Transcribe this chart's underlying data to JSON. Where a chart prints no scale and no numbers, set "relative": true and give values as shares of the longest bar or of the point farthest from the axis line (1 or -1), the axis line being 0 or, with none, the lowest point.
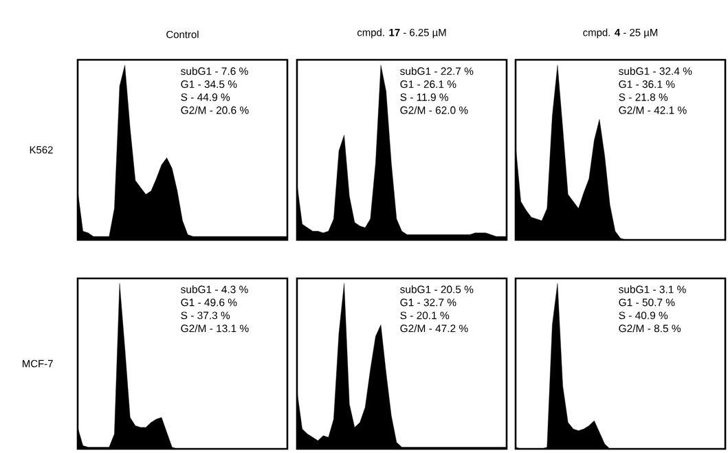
{
  "chart_data": [
    {
      "type": "area",
      "title": "Control",
      "ylabel": "K562",
      "relative": true,
      "color": "#000000",
      "categories": [
        null,
        null,
        null,
        null,
        null,
        null,
        null,
        null,
        null,
        null,
        null,
        null,
        null,
        null,
        null,
        null,
        null,
        null,
        null,
        null,
        null,
        null,
        null,
        null,
        null,
        null,
        null,
        null,
        null,
        null,
        null,
        null,
        null,
        null,
        null,
        null,
        null,
        null,
        null,
        null,
        null
      ],
      "values": [
        0.28,
        0.05,
        0.04,
        0.02,
        0.02,
        0.02,
        0.02,
        0.18,
        0.88,
        1.0,
        0.64,
        0.34,
        0.3,
        0.26,
        0.28,
        0.35,
        0.43,
        0.47,
        0.41,
        0.28,
        0.11,
        0.03,
        0.02,
        0.02,
        0.02,
        0.02,
        0.02,
        0.02,
        0.02,
        0.02,
        0.02,
        0.02,
        0.02,
        0.02,
        0.02,
        0.02,
        0.02,
        0.02,
        0.02,
        0.02,
        0.02
      ],
      "annotations": [
        "subG1 - 7.6 %",
        "G1 - 34.5 %",
        "S - 44.9 %",
        "G2/M - 20.6 %"
      ]
    },
    {
      "type": "area",
      "title": "cmpd. **17** - 6.25 µM",
      "relative": true,
      "color": "#000000",
      "categories": [
        null,
        null,
        null,
        null,
        null,
        null,
        null,
        null,
        null,
        null,
        null,
        null,
        null,
        null,
        null,
        null,
        null,
        null,
        null,
        null,
        null,
        null,
        null,
        null,
        null,
        null,
        null,
        null,
        null,
        null,
        null,
        null,
        null,
        null,
        null,
        null,
        null,
        null,
        null,
        null,
        null
      ],
      "values": [
        0.32,
        0.09,
        0.07,
        0.05,
        0.05,
        0.04,
        0.05,
        0.12,
        0.51,
        0.6,
        0.25,
        0.1,
        0.08,
        0.07,
        0.12,
        0.44,
        1.0,
        0.85,
        0.44,
        0.12,
        0.05,
        0.03,
        0.03,
        0.03,
        0.03,
        0.03,
        0.03,
        0.03,
        0.03,
        0.03,
        0.03,
        0.03,
        0.03,
        0.03,
        0.04,
        0.04,
        0.04,
        0.03,
        0.02,
        0.02,
        0.02
      ],
      "annotations": [
        "subG1 - 22.7 %",
        "G1 - 26.1 %",
        "S - 11.9 %",
        "G2/M - 62.0 %"
      ]
    },
    {
      "type": "area",
      "title": "cmpd. **4** - 25 µM",
      "relative": true,
      "color": "#000000",
      "categories": [
        null,
        null,
        null,
        null,
        null,
        null,
        null,
        null,
        null,
        null,
        null,
        null,
        null,
        null,
        null,
        null,
        null,
        null,
        null,
        null,
        null,
        null,
        null,
        null,
        null,
        null,
        null,
        null,
        null,
        null,
        null,
        null,
        null,
        null,
        null,
        null,
        null,
        null,
        null,
        null,
        null
      ],
      "values": [
        0.54,
        0.22,
        0.17,
        0.13,
        0.12,
        0.11,
        0.18,
        0.71,
        1.0,
        0.64,
        0.26,
        0.22,
        0.18,
        0.27,
        0.35,
        0.57,
        0.69,
        0.48,
        0.2,
        0.05,
        0.01,
        0,
        0,
        0,
        0,
        0,
        0,
        0,
        0,
        0,
        0,
        0,
        0,
        0,
        0,
        0,
        0,
        0,
        0,
        0,
        0
      ],
      "annotations": [
        "subG1 - 32.4 %",
        "G1 - 36.1 %",
        "S - 21.8 %",
        "G2/M - 42.1 %"
      ]
    },
    {
      "type": "area",
      "ylabel": "MCF-7",
      "relative": true,
      "color": "#000000",
      "categories": [
        null,
        null,
        null,
        null,
        null,
        null,
        null,
        null,
        null,
        null,
        null,
        null,
        null,
        null,
        null,
        null,
        null,
        null,
        null,
        null,
        null,
        null,
        null,
        null,
        null,
        null,
        null,
        null,
        null,
        null,
        null,
        null,
        null,
        null,
        null,
        null,
        null,
        null,
        null,
        null,
        null
      ],
      "values": [
        0.13,
        0.02,
        0.01,
        0.01,
        0.01,
        0.01,
        0.01,
        0.09,
        1.0,
        0.61,
        0.19,
        0.14,
        0.13,
        0.13,
        0.16,
        0.18,
        0.19,
        0.1,
        0.01,
        0,
        0,
        0,
        0,
        0,
        0,
        0,
        0,
        0,
        0,
        0,
        0,
        0,
        0,
        0,
        0,
        0,
        0,
        0,
        0,
        0,
        0
      ],
      "annotations": [
        "subG1 - 4.3 %",
        "G1 - 49.6 %",
        "S - 37.3 %",
        "G2/M - 13.1 %"
      ]
    },
    {
      "type": "area",
      "relative": true,
      "color": "#000000",
      "categories": [
        null,
        null,
        null,
        null,
        null,
        null,
        null,
        null,
        null,
        null,
        null,
        null,
        null,
        null,
        null,
        null,
        null,
        null,
        null,
        null,
        null,
        null,
        null,
        null,
        null,
        null,
        null,
        null,
        null,
        null,
        null,
        null,
        null,
        null,
        null,
        null,
        null,
        null,
        null,
        null,
        null
      ],
      "values": [
        0.35,
        0.12,
        0.09,
        0.07,
        0.05,
        0.08,
        0.07,
        0.18,
        0.7,
        1.0,
        0.27,
        0.13,
        0.16,
        0.25,
        0.48,
        0.68,
        0.75,
        0.46,
        0.2,
        0.04,
        0.01,
        0.01,
        0.01,
        0.01,
        0.01,
        0.01,
        0.01,
        0.01,
        0.01,
        0.01,
        0.01,
        0.01,
        0.01,
        0.01,
        0.01,
        0.01,
        0.01,
        0.01,
        0.01,
        0.01,
        0.01
      ],
      "annotations": [
        "subG1 - 20.5 %",
        "G1 - 32.7 %",
        "S - 20.1 %",
        "G2/M - 47.2 %"
      ]
    },
    {
      "type": "area",
      "relative": true,
      "color": "#000000",
      "categories": [
        null,
        null,
        null,
        null,
        null,
        null,
        null,
        null,
        null,
        null,
        null,
        null,
        null,
        null,
        null,
        null,
        null,
        null,
        null,
        null,
        null,
        null,
        null,
        null,
        null,
        null,
        null,
        null,
        null,
        null,
        null,
        null,
        null,
        null,
        null,
        null,
        null,
        null,
        null,
        null,
        null
      ],
      "values": [
        0.01,
        0,
        0,
        0,
        0,
        0,
        0.01,
        0.75,
        1.0,
        0.38,
        0.16,
        0.12,
        0.11,
        0.12,
        0.14,
        0.17,
        0.1,
        0.03,
        0,
        0,
        0,
        0,
        0,
        0,
        0,
        0,
        0,
        0,
        0,
        0,
        0,
        0,
        0,
        0,
        0,
        0,
        0,
        0,
        0,
        0,
        0
      ],
      "annotations": [
        "subG1 - 3.1 %",
        "G1 - 50.7 %",
        "S - 40.9 %",
        "G2/M - 8.5 %"
      ]
    }
  ]
}
